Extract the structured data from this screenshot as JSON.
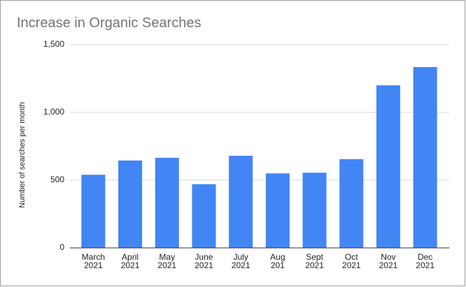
{
  "chart_data": {
    "type": "bar",
    "title": "Increase in Organic Searches",
    "y_label": "Number of searches per month",
    "categories": [
      [
        "March",
        "2021"
      ],
      [
        "April",
        "2021"
      ],
      [
        "May",
        "2021"
      ],
      [
        "June",
        "2021"
      ],
      [
        "July",
        "2021"
      ],
      [
        "Aug",
        "201"
      ],
      [
        "Sept",
        "2021"
      ],
      [
        "Oct",
        "2021"
      ],
      [
        "Nov",
        "2021"
      ],
      [
        "Dec",
        "2021"
      ]
    ],
    "values": [
      540,
      645,
      665,
      470,
      680,
      550,
      555,
      655,
      1200,
      1335
    ],
    "color": "#4285f4",
    "ylim": [
      0,
      1500
    ],
    "yticks": [
      0,
      500,
      {
        "value": 1000,
        "label": "1,000"
      },
      {
        "value": 1500,
        "label": "1,500"
      }
    ],
    "grid": true
  }
}
